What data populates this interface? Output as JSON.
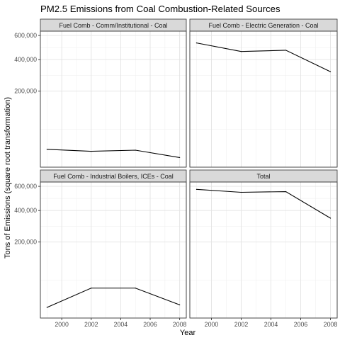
{
  "chart_data": {
    "type": "line",
    "title": "PM2.5 Emissions from Coal Combustion-Related Sources",
    "xlabel": "Year",
    "ylabel": "Tons of Emissions (square root transformation)",
    "y_scale": "sqrt",
    "ylim": [
      0,
      640000
    ],
    "xlim": [
      1998.55,
      2008.45
    ],
    "x_ticks": [
      2000,
      2002,
      2004,
      2006,
      2008
    ],
    "x_tick_labels": [
      "2000",
      "2002",
      "2004",
      "2006",
      "2008"
    ],
    "y_ticks": [
      200000,
      400000,
      600000
    ],
    "y_tick_labels": [
      "200,000",
      "400,000",
      "600,000"
    ],
    "grid": true,
    "panels": [
      {
        "name": "Fuel Comb - Comm/Institutional - Coal",
        "x": [
          1999,
          2002,
          2005,
          2008
        ],
        "y": [
          11000,
          8700,
          10000,
          3200
        ]
      },
      {
        "name": "Fuel Comb - Electric Generation - Coal",
        "x": [
          1999,
          2002,
          2005,
          2008
        ],
        "y": [
          534000,
          463000,
          473000,
          315000
        ]
      },
      {
        "name": "Fuel Comb - Industrial Boilers, ICEs - Coal",
        "x": [
          1999,
          2002,
          2005,
          2008
        ],
        "y": [
          3900,
          31000,
          31000,
          6000
        ]
      },
      {
        "name": "Total",
        "x": [
          1999,
          2002,
          2005,
          2008
        ],
        "y": [
          573000,
          547000,
          553000,
          345000
        ]
      }
    ]
  }
}
